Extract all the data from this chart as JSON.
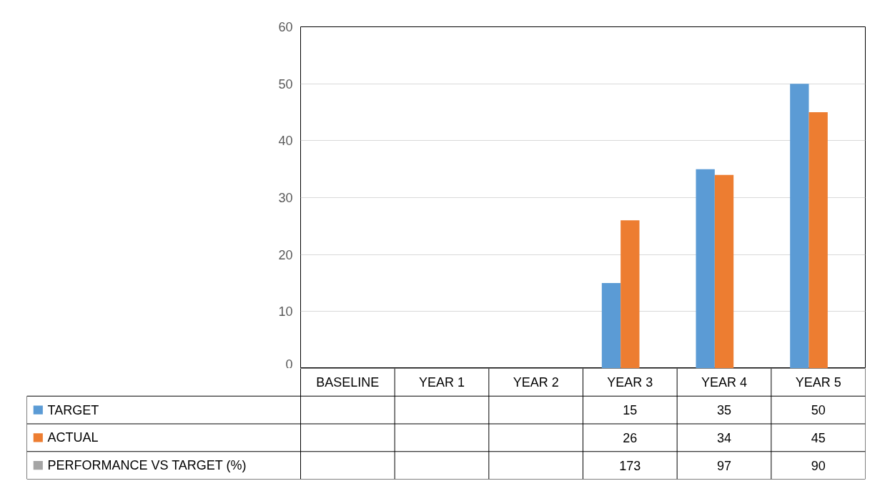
{
  "chart_data": {
    "type": "bar",
    "categories": [
      "BASELINE",
      "YEAR 1",
      "YEAR 2",
      "YEAR 3",
      "YEAR 4",
      "YEAR 5"
    ],
    "series": [
      {
        "name": "TARGET",
        "color": "#5b9bd5",
        "values": [
          null,
          null,
          null,
          15,
          35,
          50
        ]
      },
      {
        "name": "ACTUAL",
        "color": "#ed7d31",
        "values": [
          null,
          null,
          null,
          26,
          34,
          45
        ]
      },
      {
        "name": "PERFORMANCE VS TARGET (%)",
        "color": "#a5a5a5",
        "values": [
          null,
          null,
          null,
          null,
          null,
          null
        ],
        "value_labels": [
          null,
          null,
          null,
          "173",
          "97",
          "90"
        ]
      }
    ],
    "ylim": [
      0,
      60
    ],
    "yticks": [
      0,
      10,
      20,
      30,
      40,
      50,
      60
    ],
    "grid": "y",
    "data_labels": true,
    "legend": "bottom left"
  }
}
